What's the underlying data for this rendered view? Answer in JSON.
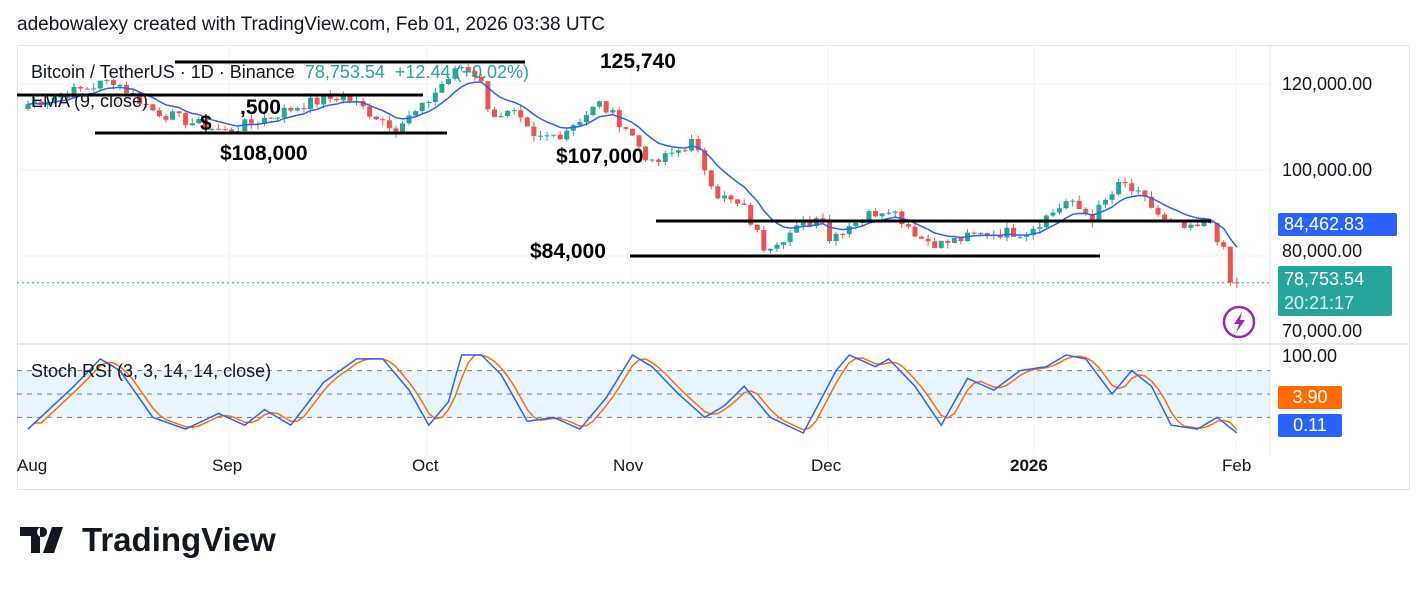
{
  "header": "adebowalexy created with TradingView.com, Feb 01, 2026 03:38 UTC",
  "legend": {
    "symbol": "Bitcoin / TetherUS · 1D · Binance",
    "price": "78,753.54",
    "change": "+12.44 (+0.02%)",
    "ema": "EMA (9, close)",
    "stoch": "Stoch RSI (3, 3, 14, 14, close)"
  },
  "annotations": {
    "a1": "125,740",
    "a2": ",500",
    "a3": "$",
    "a4": "$108,000",
    "a5": "$107,000",
    "a6": "$84,000"
  },
  "price_scale": [
    "120,000.00",
    "100,000.00",
    "80,000.00",
    "70,000.00"
  ],
  "tags": {
    "ema": "84,462.83",
    "last": "78,753.54",
    "countdown": "20:21:17",
    "rsi_top": "100.00",
    "d": "3.90",
    "k": "0.11"
  },
  "colors": {
    "up": "#26a69a",
    "down": "#ef5350",
    "ema": "#2962ff",
    "k": "#2962ff",
    "d": "#ff6d00",
    "alert": "#9c27b0"
  },
  "x_labels": [
    "Aug",
    "Sep",
    "Oct",
    "Nov",
    "Dec",
    "2026",
    "Feb"
  ],
  "logo": "TradingView",
  "chart_data": [
    {
      "type": "candlestick",
      "scale": "log",
      "title": "Bitcoin / TetherUS · 1D · Binance",
      "start": "2025-08-01",
      "close_anchors": [
        [
          "2025-08-01",
          115000
        ],
        [
          "2025-08-10",
          119000
        ],
        [
          "2025-08-14",
          121000
        ],
        [
          "2025-08-20",
          113500
        ],
        [
          "2025-08-25",
          111000
        ],
        [
          "2025-08-31",
          108500
        ],
        [
          "2025-09-05",
          111000
        ],
        [
          "2025-09-12",
          115000
        ],
        [
          "2025-09-18",
          117000
        ],
        [
          "2025-09-22",
          113000
        ],
        [
          "2025-09-26",
          109500
        ],
        [
          "2025-09-30",
          114000
        ],
        [
          "2025-10-03",
          120000
        ],
        [
          "2025-10-06",
          124500
        ],
        [
          "2025-10-09",
          121500
        ],
        [
          "2025-10-10",
          113000
        ],
        [
          "2025-10-14",
          112500
        ],
        [
          "2025-10-17",
          106500
        ],
        [
          "2025-10-21",
          108000
        ],
        [
          "2025-10-27",
          115000
        ],
        [
          "2025-10-31",
          109500
        ],
        [
          "2025-11-04",
          101000
        ],
        [
          "2025-11-10",
          106000
        ],
        [
          "2025-11-14",
          95000
        ],
        [
          "2025-11-18",
          92000
        ],
        [
          "2025-11-21",
          85000
        ],
        [
          "2025-11-25",
          87500
        ],
        [
          "2025-11-30",
          91000
        ],
        [
          "2025-12-01",
          86500
        ],
        [
          "2025-12-05",
          90000
        ],
        [
          "2025-12-10",
          92500
        ],
        [
          "2025-12-15",
          86500
        ],
        [
          "2025-12-18",
          85500
        ],
        [
          "2025-12-25",
          87500
        ],
        [
          "2025-12-31",
          87800
        ],
        [
          "2026-01-04",
          91500
        ],
        [
          "2026-01-06",
          93500
        ],
        [
          "2026-01-10",
          90500
        ],
        [
          "2026-01-14",
          96500
        ],
        [
          "2026-01-15",
          96800
        ],
        [
          "2026-01-19",
          92500
        ],
        [
          "2026-01-21",
          89500
        ],
        [
          "2026-01-25",
          88000
        ],
        [
          "2026-01-28",
          89500
        ],
        [
          "2026-01-30",
          84000
        ],
        [
          "2026-01-31",
          78700
        ],
        [
          "2026-02-01",
          78753.54
        ]
      ],
      "ema_period": 9,
      "ylim": [
        70000,
        125000
      ]
    },
    {
      "type": "line",
      "title": "Stoch RSI (3, 3, 14, 14, close)",
      "ylim": [
        0,
        100
      ],
      "bands": [
        20,
        50,
        80
      ],
      "k_anchors": [
        [
          "2025-08-01",
          5
        ],
        [
          "2025-08-08",
          60
        ],
        [
          "2025-08-12",
          95
        ],
        [
          "2025-08-15",
          80
        ],
        [
          "2025-08-20",
          20
        ],
        [
          "2025-08-25",
          5
        ],
        [
          "2025-08-30",
          25
        ],
        [
          "2025-09-03",
          10
        ],
        [
          "2025-09-06",
          30
        ],
        [
          "2025-09-10",
          10
        ],
        [
          "2025-09-15",
          65
        ],
        [
          "2025-09-20",
          95
        ],
        [
          "2025-09-24",
          95
        ],
        [
          "2025-09-28",
          55
        ],
        [
          "2025-10-01",
          10
        ],
        [
          "2025-10-04",
          40
        ],
        [
          "2025-10-06",
          100
        ],
        [
          "2025-10-09",
          100
        ],
        [
          "2025-10-12",
          75
        ],
        [
          "2025-10-16",
          15
        ],
        [
          "2025-10-20",
          20
        ],
        [
          "2025-10-24",
          5
        ],
        [
          "2025-10-28",
          45
        ],
        [
          "2025-11-01",
          100
        ],
        [
          "2025-11-04",
          85
        ],
        [
          "2025-11-08",
          50
        ],
        [
          "2025-11-12",
          20
        ],
        [
          "2025-11-15",
          35
        ],
        [
          "2025-11-18",
          60
        ],
        [
          "2025-11-22",
          20
        ],
        [
          "2025-11-27",
          0
        ],
        [
          "2025-12-02",
          80
        ],
        [
          "2025-12-04",
          100
        ],
        [
          "2025-12-08",
          85
        ],
        [
          "2025-12-10",
          95
        ],
        [
          "2025-12-14",
          60
        ],
        [
          "2025-12-18",
          10
        ],
        [
          "2025-12-22",
          70
        ],
        [
          "2025-12-26",
          55
        ],
        [
          "2025-12-30",
          80
        ],
        [
          "2026-01-03",
          85
        ],
        [
          "2026-01-06",
          100
        ],
        [
          "2026-01-09",
          95
        ],
        [
          "2026-01-13",
          50
        ],
        [
          "2026-01-16",
          80
        ],
        [
          "2026-01-19",
          60
        ],
        [
          "2026-01-22",
          10
        ],
        [
          "2026-01-26",
          5
        ],
        [
          "2026-01-29",
          20
        ],
        [
          "2026-02-01",
          0.11
        ]
      ],
      "d_last": 3.9
    }
  ]
}
